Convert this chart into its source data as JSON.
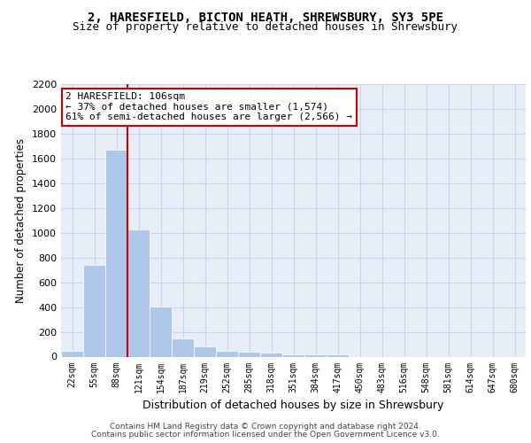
{
  "title1": "2, HARESFIELD, BICTON HEATH, SHREWSBURY, SY3 5PE",
  "title2": "Size of property relative to detached houses in Shrewsbury",
  "xlabel": "Distribution of detached houses by size in Shrewsbury",
  "ylabel": "Number of detached properties",
  "bin_labels": [
    "22sqm",
    "55sqm",
    "88sqm",
    "121sqm",
    "154sqm",
    "187sqm",
    "219sqm",
    "252sqm",
    "285sqm",
    "318sqm",
    "351sqm",
    "384sqm",
    "417sqm",
    "450sqm",
    "483sqm",
    "516sqm",
    "548sqm",
    "581sqm",
    "614sqm",
    "647sqm",
    "680sqm"
  ],
  "bar_values": [
    50,
    740,
    1670,
    1030,
    405,
    150,
    85,
    48,
    40,
    30,
    20,
    15,
    20,
    0,
    0,
    0,
    0,
    0,
    0,
    0,
    0
  ],
  "bar_color": "#aec6e8",
  "grid_color": "#c8d4e8",
  "bg_color": "#e8eef8",
  "vline_color": "#cc0000",
  "vline_x_index": 2,
  "annotation_text": "2 HARESFIELD: 106sqm\n← 37% of detached houses are smaller (1,574)\n61% of semi-detached houses are larger (2,566) →",
  "annotation_box_color": "#ffffff",
  "annotation_box_edge": "#cc0000",
  "ylim": [
    0,
    2200
  ],
  "yticks": [
    0,
    200,
    400,
    600,
    800,
    1000,
    1200,
    1400,
    1600,
    1800,
    2000,
    2200
  ],
  "footer1": "Contains HM Land Registry data © Crown copyright and database right 2024.",
  "footer2": "Contains public sector information licensed under the Open Government Licence v3.0."
}
